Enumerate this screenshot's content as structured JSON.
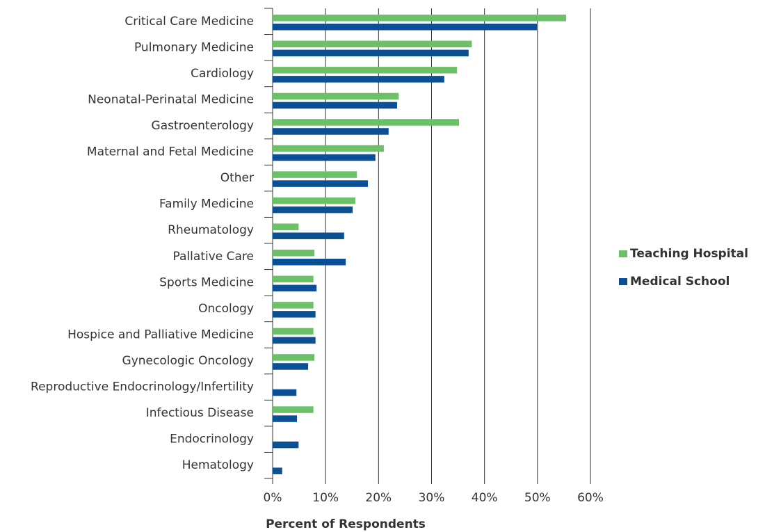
{
  "chart_data": {
    "type": "hbar",
    "xlabel": "Percent of Respondents",
    "categories": [
      "Critical Care Medicine",
      "Pulmonary Medicine",
      "Cardiology",
      "Neonatal-Perinatal Medicine",
      "Gastroenterology",
      "Maternal and Fetal Medicine",
      "Other",
      "Family Medicine",
      "Rheumatology",
      "Pallative Care",
      "Sports Medicine",
      "Oncology",
      "Hospice and Palliative Medicine",
      "Gynecologic Oncology",
      "Reproductive Endocrinology/Infertility",
      "Infectious Disease",
      "Endocrinology",
      "Hematology"
    ],
    "series": [
      {
        "name": "Teaching Hospital",
        "color": "#6cc067",
        "values": [
          55.4,
          37.6,
          34.8,
          23.8,
          35.2,
          21,
          15.9,
          15.6,
          4.9,
          7.9,
          7.7,
          7.7,
          7.7,
          7.9,
          0,
          7.7,
          0,
          0
        ]
      },
      {
        "name": "Medical School",
        "color": "#0b4f95",
        "values": [
          49.9,
          37,
          32.4,
          23.5,
          21.9,
          19.4,
          18,
          15.1,
          13.5,
          13.8,
          8.3,
          8.1,
          8.1,
          6.7,
          4.5,
          4.6,
          4.9,
          1.8
        ]
      }
    ],
    "xlim": [
      0,
      60
    ],
    "xticks": [
      {
        "value": 0,
        "label": "0%"
      },
      {
        "value": 10,
        "label": "10%"
      },
      {
        "value": 20,
        "label": "20%"
      },
      {
        "value": 30,
        "label": "30%"
      },
      {
        "value": 40,
        "label": "40%"
      },
      {
        "value": 50,
        "label": "50%"
      },
      {
        "value": 60,
        "label": "60%"
      }
    ],
    "grid": true
  }
}
